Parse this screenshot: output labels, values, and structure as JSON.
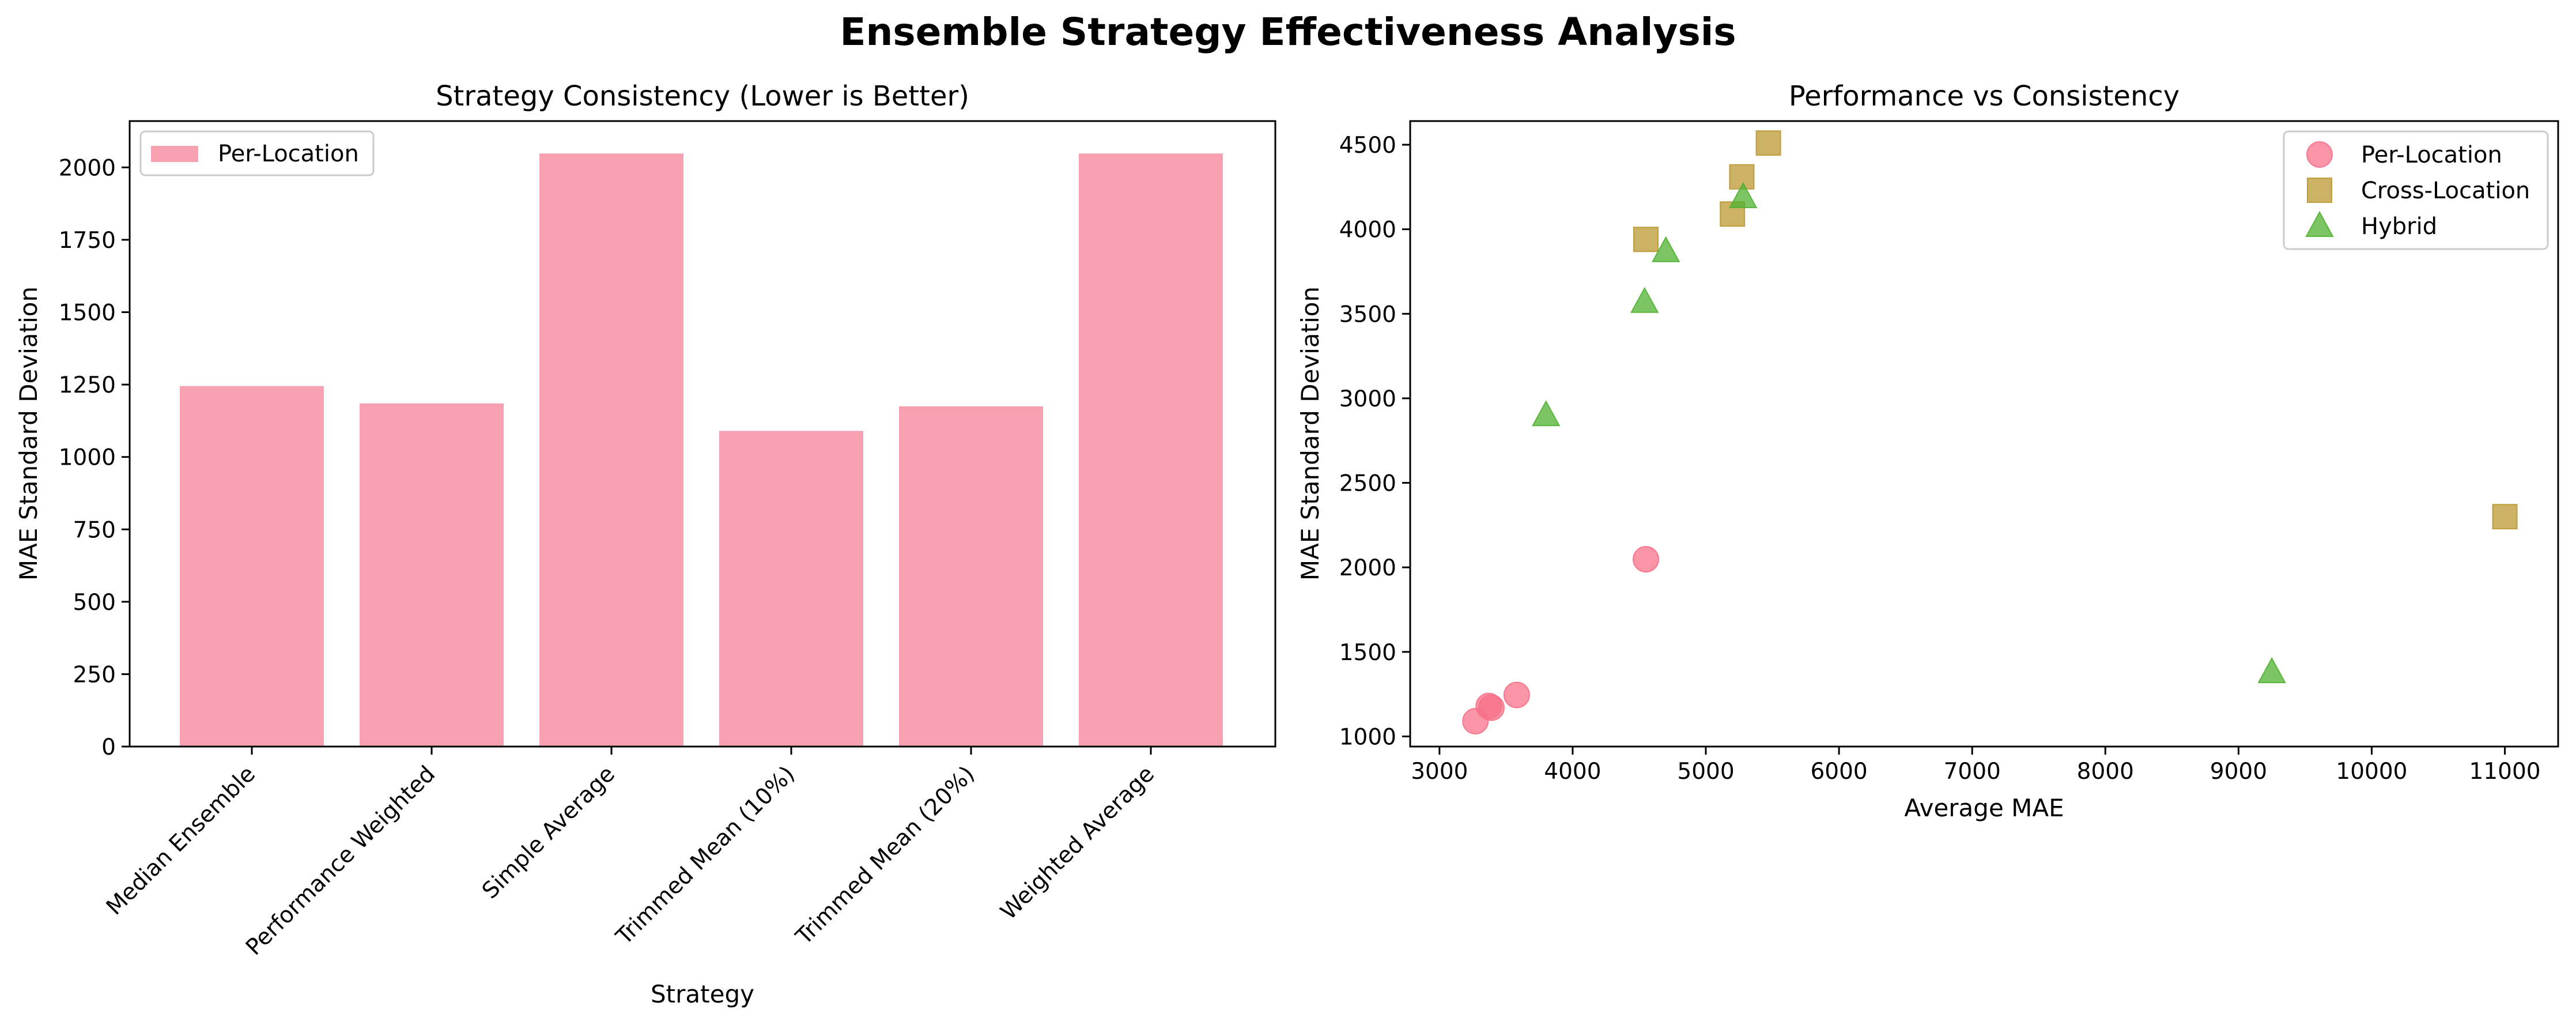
{
  "figure": {
    "title": "Ensemble Strategy Effectiveness Analysis"
  },
  "chart_data": [
    {
      "type": "bar",
      "title": "Strategy Consistency (Lower is Better)",
      "xlabel": "Strategy",
      "ylabel": "MAE Standard Deviation",
      "ylim": [
        0,
        2160
      ],
      "yticks": [
        0,
        250,
        500,
        750,
        1000,
        1250,
        1500,
        1750,
        2000
      ],
      "grid": false,
      "legend": "upper-left",
      "categories": [
        "Median Ensemble",
        "Performance Weighted",
        "Simple Average",
        "Trimmed Mean (10%)",
        "Trimmed Mean (20%)",
        "Weighted Average"
      ],
      "series": [
        {
          "name": "Per-Location",
          "color": "#f7a0b1",
          "values": [
            1245,
            1185,
            2048,
            1090,
            1175,
            2048
          ]
        }
      ]
    },
    {
      "type": "scatter",
      "title": "Performance vs Consistency",
      "xlabel": "Average MAE",
      "ylabel": "MAE Standard Deviation",
      "xlim": [
        2780,
        11400
      ],
      "ylim": [
        940,
        4640
      ],
      "xticks": [
        3000,
        4000,
        5000,
        6000,
        7000,
        8000,
        9000,
        10000,
        11000
      ],
      "yticks": [
        1000,
        1500,
        2000,
        2500,
        3000,
        3500,
        4000,
        4500
      ],
      "grid": false,
      "legend": "upper-right",
      "series": [
        {
          "name": "Per-Location",
          "marker": "circle",
          "color": "#f77189",
          "points": [
            [
              3270,
              1090
            ],
            [
              3370,
              1180
            ],
            [
              3390,
              1170
            ],
            [
              3580,
              1245
            ],
            [
              4550,
              2048
            ]
          ]
        },
        {
          "name": "Cross-Location",
          "marker": "square",
          "color": "#bb9832",
          "points": [
            [
              4550,
              3940
            ],
            [
              5200,
              4090
            ],
            [
              5270,
              4310
            ],
            [
              5470,
              4510
            ],
            [
              11000,
              2300
            ]
          ]
        },
        {
          "name": "Hybrid",
          "marker": "triangle",
          "color": "#50b131",
          "points": [
            [
              3800,
              2900
            ],
            [
              4540,
              3570
            ],
            [
              4700,
              3870
            ],
            [
              5280,
              4190
            ],
            [
              9250,
              1380
            ]
          ]
        }
      ]
    }
  ]
}
